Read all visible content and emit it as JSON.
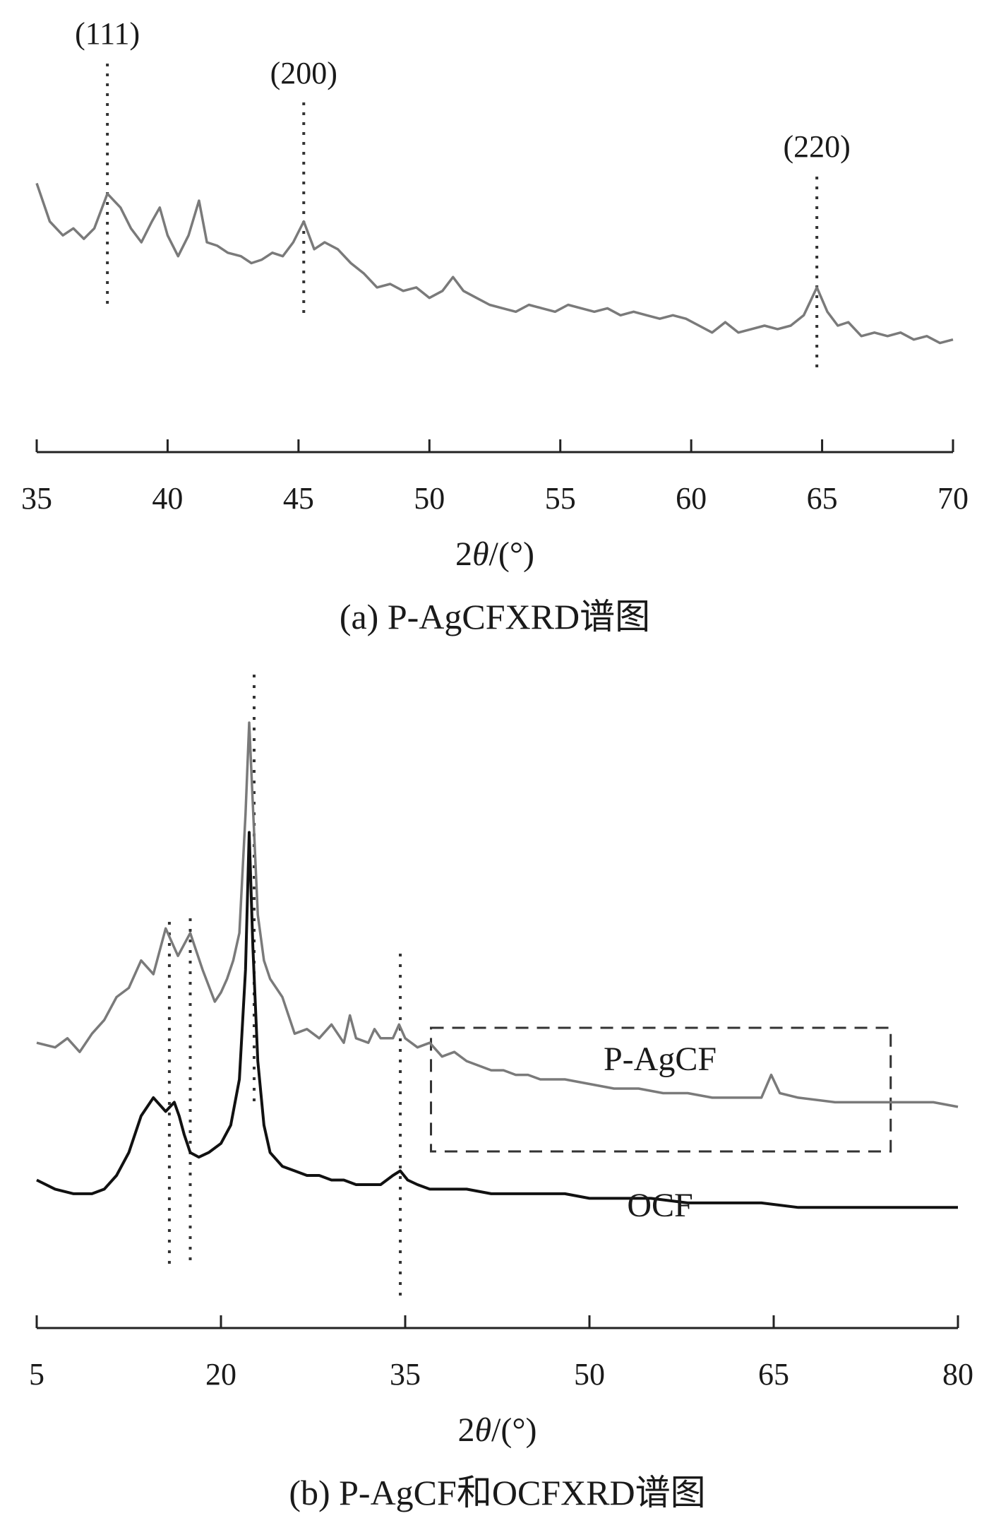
{
  "chart_data": [
    {
      "type": "line",
      "panel": "a",
      "caption": "(a) P-AgCFXRD谱图",
      "xlabel": "2θ/(°)",
      "xlabel_parts": {
        "prefix": "2",
        "symbol": "θ",
        "suffix": "/(°)"
      },
      "ylabel": "",
      "xlim": [
        35,
        70
      ],
      "xticks": [
        35,
        40,
        45,
        50,
        55,
        60,
        65,
        70
      ],
      "yaxis_visible": false,
      "grid": false,
      "series": [
        {
          "name": "P-AgCF",
          "color": "#7a7a7a",
          "x": [
            35,
            35.5,
            36,
            36.4,
            36.8,
            37.2,
            37.7,
            38.2,
            38.6,
            39.0,
            39.4,
            39.7,
            40.0,
            40.4,
            40.8,
            41.2,
            41.5,
            41.9,
            42.3,
            42.8,
            43.2,
            43.6,
            44.0,
            44.4,
            44.8,
            45.2,
            45.6,
            46.0,
            46.5,
            47.0,
            47.5,
            48.0,
            48.5,
            49.0,
            49.5,
            50.0,
            50.5,
            50.9,
            51.3,
            51.8,
            52.3,
            52.8,
            53.3,
            53.8,
            54.3,
            54.8,
            55.3,
            55.8,
            56.3,
            56.8,
            57.3,
            57.8,
            58.3,
            58.8,
            59.3,
            59.8,
            60.3,
            60.8,
            61.3,
            61.8,
            62.3,
            62.8,
            63.3,
            63.8,
            64.3,
            64.8,
            65.2,
            65.6,
            66.0,
            66.5,
            67.0,
            67.5,
            68.0,
            68.5,
            69.0,
            69.5,
            70
          ],
          "y": [
            0.93,
            0.82,
            0.78,
            0.8,
            0.77,
            0.8,
            0.9,
            0.86,
            0.8,
            0.76,
            0.82,
            0.86,
            0.78,
            0.72,
            0.78,
            0.88,
            0.76,
            0.75,
            0.73,
            0.72,
            0.7,
            0.71,
            0.73,
            0.72,
            0.76,
            0.82,
            0.74,
            0.76,
            0.74,
            0.7,
            0.67,
            0.63,
            0.64,
            0.62,
            0.63,
            0.6,
            0.62,
            0.66,
            0.62,
            0.6,
            0.58,
            0.57,
            0.56,
            0.58,
            0.57,
            0.56,
            0.58,
            0.57,
            0.56,
            0.57,
            0.55,
            0.56,
            0.55,
            0.54,
            0.55,
            0.54,
            0.52,
            0.5,
            0.53,
            0.5,
            0.51,
            0.52,
            0.51,
            0.52,
            0.55,
            0.63,
            0.56,
            0.52,
            0.53,
            0.49,
            0.5,
            0.49,
            0.5,
            0.48,
            0.49,
            0.47,
            0.48
          ]
        }
      ],
      "annotations": [
        {
          "text": "(111)",
          "x": 37.7
        },
        {
          "text": "(200)",
          "x": 45.2
        },
        {
          "text": "(220)",
          "x": 64.8
        }
      ]
    },
    {
      "type": "line",
      "panel": "b",
      "caption": "(b) P-AgCF和OCFXRD谱图",
      "xlabel": "2θ/(°)",
      "xlabel_parts": {
        "prefix": "2",
        "symbol": "θ",
        "suffix": "/(°)"
      },
      "ylabel": "",
      "xlim": [
        5,
        80
      ],
      "xticks": [
        5,
        20,
        35,
        50,
        65,
        80
      ],
      "yaxis_visible": false,
      "grid": false,
      "series": [
        {
          "name": "P-AgCF",
          "color": "#7a7a7a",
          "x": [
            5,
            6.5,
            7.5,
            8.5,
            9.5,
            10.5,
            11.5,
            12.5,
            13.5,
            14.5,
            15.5,
            16.5,
            17.5,
            18.5,
            19.5,
            20.0,
            20.5,
            21.0,
            21.5,
            22.0,
            22.3,
            22.6,
            23.0,
            23.5,
            24.0,
            25.0,
            25.5,
            26.0,
            27.0,
            28.0,
            29.0,
            30.0,
            30.5,
            31.0,
            32.0,
            32.5,
            33.0,
            34.0,
            34.5,
            35.0,
            36.0,
            37.0,
            38.0,
            39.0,
            40.0,
            41.0,
            42.0,
            43.0,
            44.0,
            45.0,
            46.0,
            48.0,
            50.0,
            52.0,
            54.0,
            56.0,
            58.0,
            60.0,
            62.0,
            64.0,
            64.8,
            65.5,
            67.0,
            70.0,
            73.0,
            76.0,
            78.0,
            80.0
          ],
          "y": [
            0.2,
            0.19,
            0.21,
            0.18,
            0.22,
            0.25,
            0.3,
            0.32,
            0.38,
            0.35,
            0.45,
            0.39,
            0.44,
            0.36,
            0.29,
            0.31,
            0.34,
            0.38,
            0.44,
            0.7,
            0.9,
            0.72,
            0.48,
            0.38,
            0.34,
            0.3,
            0.26,
            0.22,
            0.23,
            0.21,
            0.24,
            0.2,
            0.26,
            0.21,
            0.2,
            0.23,
            0.21,
            0.21,
            0.24,
            0.21,
            0.19,
            0.2,
            0.17,
            0.18,
            0.16,
            0.15,
            0.14,
            0.14,
            0.13,
            0.13,
            0.12,
            0.12,
            0.11,
            0.1,
            0.1,
            0.09,
            0.09,
            0.08,
            0.08,
            0.08,
            0.13,
            0.09,
            0.08,
            0.07,
            0.07,
            0.07,
            0.07,
            0.06
          ]
        },
        {
          "name": "OCF",
          "color": "#111111",
          "x": [
            5,
            6.5,
            8.0,
            9.5,
            10.5,
            11.5,
            12.5,
            13.5,
            14.5,
            15.5,
            16.2,
            16.6,
            17.0,
            17.5,
            18.2,
            19.0,
            20.0,
            20.8,
            21.5,
            22.0,
            22.3,
            22.6,
            23.0,
            23.5,
            24.0,
            25.0,
            26.0,
            27.0,
            28.0,
            29.0,
            30.0,
            31.0,
            32.0,
            33.0,
            34.0,
            34.6,
            35.2,
            36.0,
            37.0,
            38.0,
            40.0,
            42.0,
            44.0,
            46.0,
            48.0,
            50.0,
            52.0,
            55.0,
            58.0,
            61.0,
            64.0,
            67.0,
            70.0,
            73.0,
            76.0,
            78.0,
            80.0
          ],
          "y": [
            0.04,
            0.02,
            0.01,
            0.01,
            0.02,
            0.05,
            0.1,
            0.18,
            0.22,
            0.19,
            0.21,
            0.18,
            0.14,
            0.1,
            0.09,
            0.1,
            0.12,
            0.16,
            0.26,
            0.5,
            0.8,
            0.55,
            0.3,
            0.16,
            0.1,
            0.07,
            0.06,
            0.05,
            0.05,
            0.04,
            0.04,
            0.03,
            0.03,
            0.03,
            0.05,
            0.06,
            0.04,
            0.03,
            0.02,
            0.02,
            0.02,
            0.01,
            0.01,
            0.01,
            0.01,
            0.0,
            0.0,
            0.0,
            -0.01,
            -0.01,
            -0.01,
            -0.02,
            -0.02,
            -0.02,
            -0.02,
            -0.02,
            -0.02
          ]
        }
      ],
      "reference_x": [
        15.8,
        17.5,
        22.7,
        34.6
      ]
    }
  ]
}
